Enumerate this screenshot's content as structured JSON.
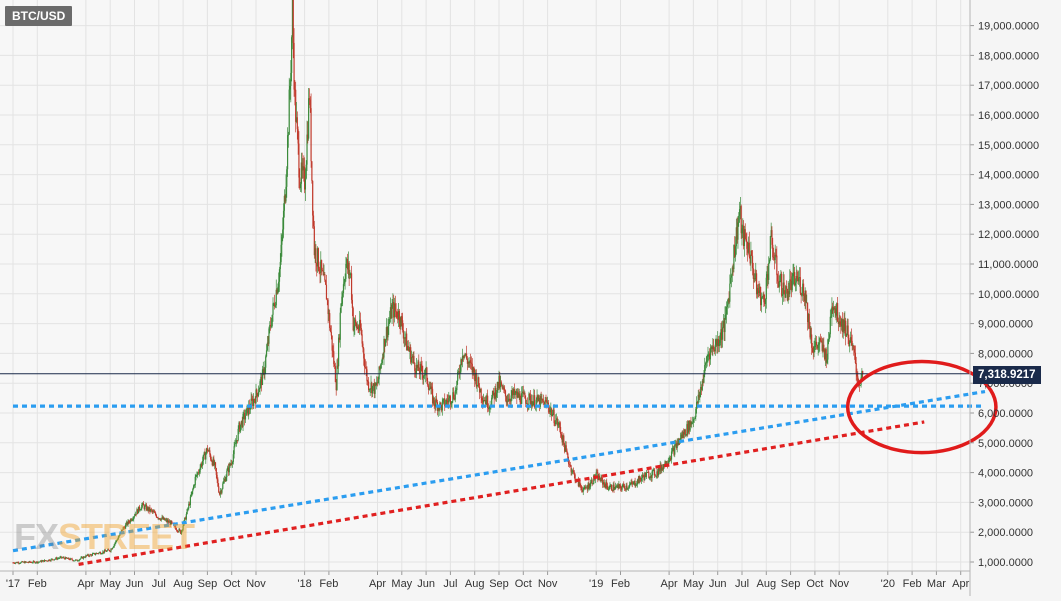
{
  "chart_data": {
    "type": "candlestick",
    "symbol": "BTC/USD",
    "current_price": 7318.9217,
    "current_price_label": "7,318.9217",
    "ylim": [
      600,
      20200
    ],
    "y_ticks": [
      {
        "value": 1000,
        "label": "1,000.0000"
      },
      {
        "value": 2000,
        "label": "2,000.0000"
      },
      {
        "value": 3000,
        "label": "3,000.0000"
      },
      {
        "value": 4000,
        "label": "4,000.0000"
      },
      {
        "value": 5000,
        "label": "5,000.0000"
      },
      {
        "value": 6000,
        "label": "6,000.0000"
      },
      {
        "value": 7000,
        "label": "7,000.0000"
      },
      {
        "value": 8000,
        "label": "8,000.0000"
      },
      {
        "value": 9000,
        "label": "9,000.0000"
      },
      {
        "value": 10000,
        "label": "10,000.0000"
      },
      {
        "value": 11000,
        "label": "11,000.0000"
      },
      {
        "value": 12000,
        "label": "12,000.0000"
      },
      {
        "value": 13000,
        "label": "13,000.0000"
      },
      {
        "value": 14000,
        "label": "14,000.0000"
      },
      {
        "value": 15000,
        "label": "15,000.0000"
      },
      {
        "value": 16000,
        "label": "16,000.0000"
      },
      {
        "value": 17000,
        "label": "17,000.0000"
      },
      {
        "value": 18000,
        "label": "18,000.0000"
      },
      {
        "value": 19000,
        "label": "19,000.0000"
      }
    ],
    "x_ticks": [
      {
        "month": 0,
        "label": "'17"
      },
      {
        "month": 1,
        "label": "Feb"
      },
      {
        "month": 3,
        "label": "Apr"
      },
      {
        "month": 4,
        "label": "May"
      },
      {
        "month": 5,
        "label": "Jun"
      },
      {
        "month": 6,
        "label": "Jul"
      },
      {
        "month": 7,
        "label": "Aug"
      },
      {
        "month": 8,
        "label": "Sep"
      },
      {
        "month": 9,
        "label": "Oct"
      },
      {
        "month": 10,
        "label": "Nov"
      },
      {
        "month": 12,
        "label": "'18"
      },
      {
        "month": 13,
        "label": "Feb"
      },
      {
        "month": 15,
        "label": "Apr"
      },
      {
        "month": 16,
        "label": "May"
      },
      {
        "month": 17,
        "label": "Jun"
      },
      {
        "month": 18,
        "label": "Jul"
      },
      {
        "month": 19,
        "label": "Aug"
      },
      {
        "month": 20,
        "label": "Sep"
      },
      {
        "month": 21,
        "label": "Oct"
      },
      {
        "month": 22,
        "label": "Nov"
      },
      {
        "month": 24,
        "label": "'19"
      },
      {
        "month": 25,
        "label": "Feb"
      },
      {
        "month": 27,
        "label": "Apr"
      },
      {
        "month": 28,
        "label": "May"
      },
      {
        "month": 29,
        "label": "Jun"
      },
      {
        "month": 30,
        "label": "Jul"
      },
      {
        "month": 31,
        "label": "Aug"
      },
      {
        "month": 32,
        "label": "Sep"
      },
      {
        "month": 33,
        "label": "Oct"
      },
      {
        "month": 34,
        "label": "Nov"
      },
      {
        "month": 36,
        "label": "'20"
      },
      {
        "month": 37,
        "label": "Feb"
      },
      {
        "month": 38,
        "label": "Mar"
      },
      {
        "month": 39,
        "label": "Apr"
      }
    ],
    "price_path": [
      [
        0.0,
        980
      ],
      [
        1.0,
        1000
      ],
      [
        2.0,
        1150
      ],
      [
        2.6,
        1050
      ],
      [
        3.0,
        1200
      ],
      [
        3.5,
        1300
      ],
      [
        4.0,
        1400
      ],
      [
        4.5,
        2100
      ],
      [
        5.0,
        2600
      ],
      [
        5.3,
        2900
      ],
      [
        5.7,
        2700
      ],
      [
        6.0,
        2500
      ],
      [
        6.5,
        2300
      ],
      [
        6.9,
        2000
      ],
      [
        7.2,
        2800
      ],
      [
        7.5,
        3800
      ],
      [
        7.8,
        4400
      ],
      [
        8.0,
        4800
      ],
      [
        8.3,
        4200
      ],
      [
        8.5,
        3300
      ],
      [
        8.8,
        4000
      ],
      [
        9.0,
        4400
      ],
      [
        9.3,
        5500
      ],
      [
        9.6,
        6000
      ],
      [
        10.0,
        6600
      ],
      [
        10.3,
        7300
      ],
      [
        10.6,
        9000
      ],
      [
        11.0,
        11000
      ],
      [
        11.2,
        13500
      ],
      [
        11.4,
        17000
      ],
      [
        11.5,
        19500
      ],
      [
        11.6,
        16500
      ],
      [
        11.8,
        14000
      ],
      [
        12.0,
        13800
      ],
      [
        12.2,
        16800
      ],
      [
        12.4,
        11500
      ],
      [
        12.6,
        11000
      ],
      [
        12.9,
        10000
      ],
      [
        13.1,
        8500
      ],
      [
        13.3,
        7000
      ],
      [
        13.5,
        9800
      ],
      [
        13.7,
        11000
      ],
      [
        13.9,
        10600
      ],
      [
        14.0,
        9000
      ],
      [
        14.3,
        8800
      ],
      [
        14.6,
        7000
      ],
      [
        14.9,
        6800
      ],
      [
        15.0,
        7000
      ],
      [
        15.3,
        8500
      ],
      [
        15.6,
        9500
      ],
      [
        15.9,
        9300
      ],
      [
        16.2,
        8300
      ],
      [
        16.6,
        7500
      ],
      [
        17.0,
        7300
      ],
      [
        17.3,
        6400
      ],
      [
        17.6,
        6200
      ],
      [
        18.0,
        6500
      ],
      [
        18.2,
        6700
      ],
      [
        18.5,
        8100
      ],
      [
        18.8,
        7600
      ],
      [
        19.0,
        7300
      ],
      [
        19.3,
        6600
      ],
      [
        19.6,
        6300
      ],
      [
        20.0,
        7000
      ],
      [
        20.3,
        6500
      ],
      [
        20.6,
        6600
      ],
      [
        21.0,
        6500
      ],
      [
        21.5,
        6400
      ],
      [
        22.0,
        6300
      ],
      [
        22.5,
        5500
      ],
      [
        22.9,
        4300
      ],
      [
        23.2,
        3700
      ],
      [
        23.5,
        3400
      ],
      [
        24.0,
        3900
      ],
      [
        24.5,
        3500
      ],
      [
        25.0,
        3500
      ],
      [
        25.5,
        3600
      ],
      [
        26.0,
        3900
      ],
      [
        26.5,
        4000
      ],
      [
        27.0,
        4500
      ],
      [
        27.5,
        5200
      ],
      [
        28.0,
        5800
      ],
      [
        28.3,
        6800
      ],
      [
        28.6,
        8000
      ],
      [
        29.0,
        8400
      ],
      [
        29.3,
        9000
      ],
      [
        29.6,
        11000
      ],
      [
        29.9,
        12800
      ],
      [
        30.0,
        12000
      ],
      [
        30.3,
        11500
      ],
      [
        30.6,
        10200
      ],
      [
        30.9,
        9700
      ],
      [
        31.2,
        11800
      ],
      [
        31.5,
        10500
      ],
      [
        31.8,
        10000
      ],
      [
        32.0,
        10300
      ],
      [
        32.3,
        10500
      ],
      [
        32.6,
        10000
      ],
      [
        32.9,
        8200
      ],
      [
        33.2,
        8300
      ],
      [
        33.5,
        7900
      ],
      [
        33.7,
        9800
      ],
      [
        34.0,
        9200
      ],
      [
        34.3,
        8800
      ],
      [
        34.6,
        8000
      ],
      [
        34.8,
        7000
      ],
      [
        35.0,
        7300
      ]
    ],
    "support_lines": [
      {
        "name": "horizontal-support",
        "color": "#2b9df0",
        "points": [
          [
            0,
            6230
          ],
          [
            40,
            6230
          ]
        ]
      },
      {
        "name": "blue-trendline",
        "color": "#2b9df0",
        "points": [
          [
            0,
            1380
          ],
          [
            40,
            6720
          ]
        ]
      },
      {
        "name": "red-trendline",
        "color": "#e02020",
        "points": [
          [
            2.7,
            920
          ],
          [
            37.5,
            5700
          ]
        ]
      }
    ],
    "highlight_ellipse": {
      "color": "#e01b1b",
      "center": [
        37.4,
        6200
      ],
      "radius_months": 3.05,
      "radius_price": 1530
    },
    "colors": {
      "up": "#3a8a3a",
      "down": "#c0392b",
      "line": "#1a2a4a",
      "grid": "#e3e3e3"
    }
  },
  "watermark": {
    "part1": "FX",
    "part2": "STREET"
  }
}
